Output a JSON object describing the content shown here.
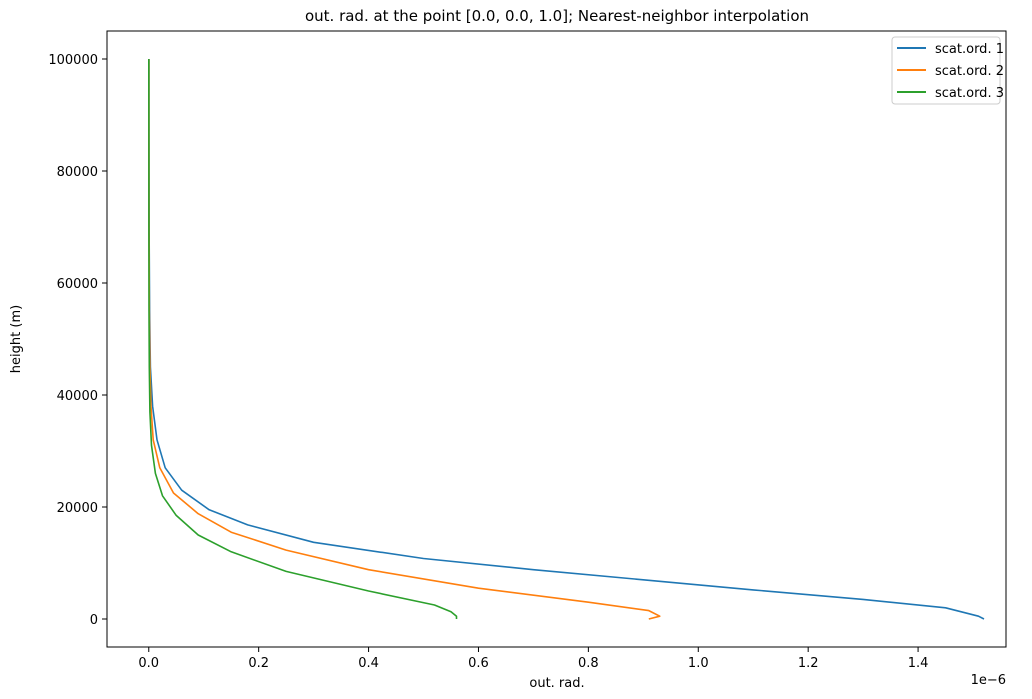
{
  "chart_data": {
    "type": "line",
    "title": "out. rad. at the point [0.0, 0.0, 1.0]; Nearest-neighbor interpolation",
    "xlabel": "out. rad.",
    "ylabel": "height (m)",
    "x_offset_label": "1e−6",
    "xlim": [
      -7.6e-08,
      1.56e-06
    ],
    "ylim": [
      -5000,
      105000
    ],
    "x_ticks": [
      0,
      2e-07,
      4e-07,
      6e-07,
      8e-07,
      1e-06,
      1.2e-06,
      1.4e-06
    ],
    "x_tick_labels": [
      "0.0",
      "0.2",
      "0.4",
      "0.6",
      "0.8",
      "1.0",
      "1.2",
      "1.4"
    ],
    "y_ticks": [
      0,
      20000,
      40000,
      60000,
      80000,
      100000
    ],
    "y_tick_labels": [
      "0",
      "20000",
      "40000",
      "60000",
      "80000",
      "100000"
    ],
    "grid": false,
    "legend_position": "top-right",
    "series": [
      {
        "name": "scat.ord. 1",
        "color": "#1f77b4",
        "points": [
          [
            1.52e-06,
            0
          ],
          [
            1.51e-06,
            500
          ],
          [
            1.45e-06,
            2000
          ],
          [
            1.3e-06,
            3500
          ],
          [
            1.1e-06,
            5200
          ],
          [
            9e-07,
            7000
          ],
          [
            7e-07,
            8800
          ],
          [
            5e-07,
            10800
          ],
          [
            3e-07,
            13700
          ],
          [
            1.8e-07,
            16800
          ],
          [
            1.1e-07,
            19500
          ],
          [
            6e-08,
            23000
          ],
          [
            3e-08,
            27000
          ],
          [
            1.5e-08,
            32000
          ],
          [
            7e-09,
            38000
          ],
          [
            3e-09,
            45000
          ],
          [
            1.5e-09,
            55000
          ],
          [
            7e-10,
            70000
          ],
          [
            3e-10,
            85000
          ],
          [
            2e-10,
            100000
          ]
        ]
      },
      {
        "name": "scat.ord. 2",
        "color": "#ff7f0e",
        "points": [
          [
            9.1e-07,
            0
          ],
          [
            9.3e-07,
            500
          ],
          [
            9.1e-07,
            1500
          ],
          [
            8e-07,
            3000
          ],
          [
            6e-07,
            5500
          ],
          [
            4e-07,
            8800
          ],
          [
            2.5e-07,
            12300
          ],
          [
            1.5e-07,
            15500
          ],
          [
            9e-08,
            18800
          ],
          [
            4.5e-08,
            22500
          ],
          [
            2e-08,
            27000
          ],
          [
            8e-09,
            32000
          ],
          [
            4e-09,
            38000
          ],
          [
            2e-09,
            45000
          ],
          [
            1e-09,
            55000
          ],
          [
            5e-10,
            70000
          ],
          [
            3e-10,
            85000
          ],
          [
            2e-10,
            100000
          ]
        ]
      },
      {
        "name": "scat.ord. 3",
        "color": "#2ca02c",
        "points": [
          [
            5.6e-07,
            0
          ],
          [
            5.6e-07,
            500
          ],
          [
            5.5e-07,
            1300
          ],
          [
            5.2e-07,
            2500
          ],
          [
            4e-07,
            5000
          ],
          [
            2.5e-07,
            8500
          ],
          [
            1.5e-07,
            12000
          ],
          [
            9e-08,
            15000
          ],
          [
            5e-08,
            18500
          ],
          [
            2.5e-08,
            22000
          ],
          [
            1.2e-08,
            26000
          ],
          [
            5e-09,
            31000
          ],
          [
            2e-09,
            37000
          ],
          [
            1e-09,
            45000
          ],
          [
            5e-10,
            55000
          ],
          [
            3e-10,
            70000
          ],
          [
            2e-10,
            85000
          ],
          [
            1e-10,
            100000
          ]
        ]
      }
    ]
  }
}
